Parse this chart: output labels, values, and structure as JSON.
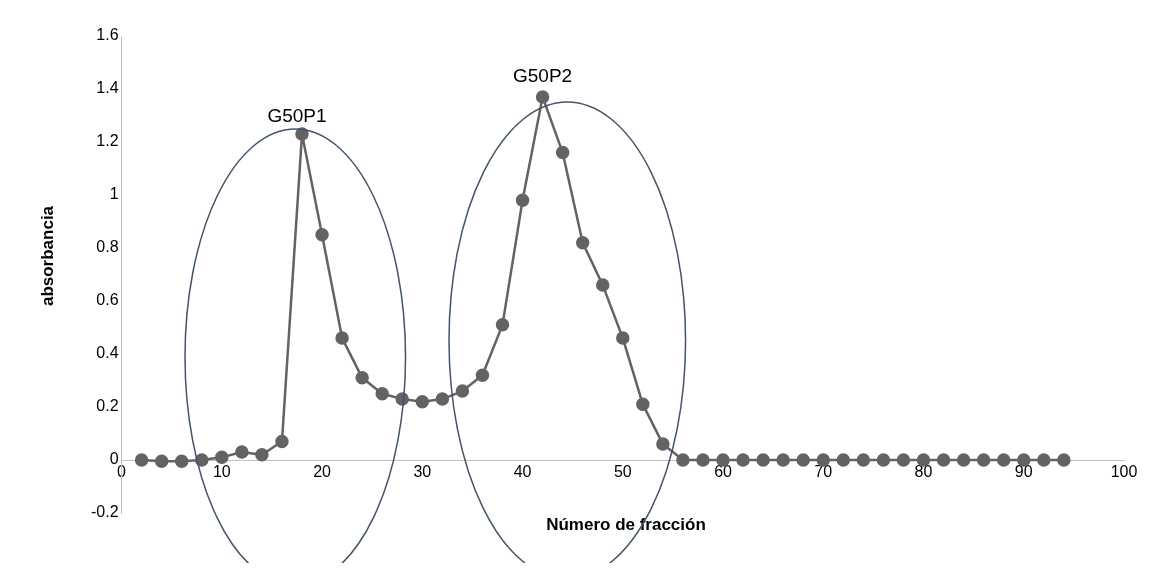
{
  "chart_data": {
    "type": "line",
    "xlabel": "Número de fracción",
    "ylabel": "absorbancia",
    "x": [
      2,
      4,
      6,
      8,
      10,
      12,
      14,
      16,
      18,
      20,
      22,
      24,
      26,
      28,
      30,
      32,
      34,
      36,
      38,
      40,
      42,
      44,
      46,
      48,
      50,
      52,
      54,
      56,
      58,
      60,
      62,
      64,
      66,
      68,
      70,
      72,
      74,
      76,
      78,
      80,
      82,
      84,
      86,
      88,
      90,
      92,
      94
    ],
    "series": [
      {
        "color": "#636363",
        "values": [
          0,
          -0.005,
          -0.005,
          0,
          0.01,
          0.03,
          0.02,
          0.07,
          1.23,
          0.85,
          0.46,
          0.31,
          0.25,
          0.23,
          0.22,
          0.23,
          0.26,
          0.32,
          0.51,
          0.98,
          1.37,
          1.16,
          0.82,
          0.66,
          0.46,
          0.21,
          0.06,
          0,
          0,
          0,
          0,
          0,
          0,
          0,
          0,
          0,
          0,
          0,
          0,
          0,
          0,
          0,
          0,
          0,
          0,
          0,
          0
        ]
      }
    ],
    "xlim": [
      0,
      100
    ],
    "xticks": [
      0,
      10,
      20,
      30,
      40,
      50,
      60,
      70,
      80,
      90,
      100
    ],
    "ylim": [
      -0.2,
      1.6
    ],
    "yticks": [
      -0.2,
      0,
      0.2,
      0.4,
      0.6,
      0.8,
      1,
      1.2,
      1.4,
      1.6
    ],
    "grid": false,
    "legend": false,
    "marker": "circle",
    "line_style": "solid",
    "annotations": [
      "G50P1",
      "G50P2"
    ]
  }
}
